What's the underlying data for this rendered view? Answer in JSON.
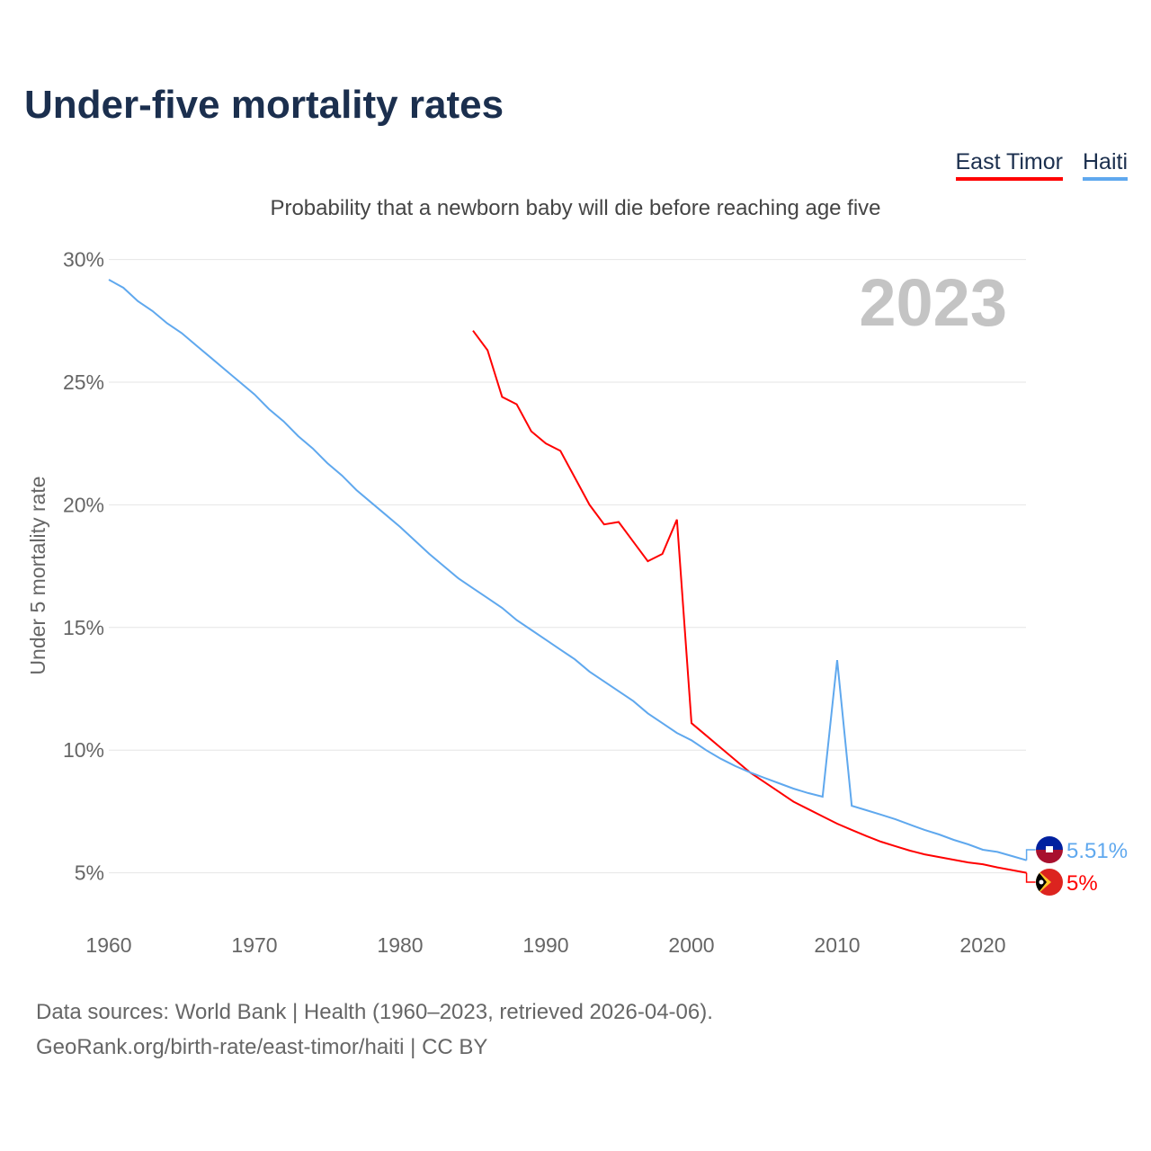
{
  "title": "Under-five mortality rates",
  "subtitle": "Probability that a newborn baby will die before reaching age five",
  "footer": {
    "line1": "Data sources: World Bank | Health (1960–2023, retrieved 2026-04-06).",
    "line2": "GeoRank.org/birth-rate/east-timor/haiti | CC BY"
  },
  "chart_data": {
    "type": "line",
    "title": "Under-five mortality rates",
    "ylabel": "Under 5 mortality rate",
    "xlabel": "",
    "year_label": "2023",
    "xlim": [
      1960,
      2023
    ],
    "ylim": [
      3,
      30
    ],
    "x_ticks": [
      1960,
      1970,
      1980,
      1990,
      2000,
      2010,
      2020
    ],
    "y_ticks": [
      5,
      10,
      15,
      20,
      25,
      30
    ],
    "y_tick_labels": [
      "5%",
      "10%",
      "15%",
      "20%",
      "25%",
      "30%"
    ],
    "grid": true,
    "legend_position": "top-right",
    "series": [
      {
        "name": "East Timor",
        "color": "#ff0000",
        "end_label": "5%",
        "flag": "east-timor-flag",
        "start_year": 1985,
        "values": [
          27.1,
          26.3,
          24.4,
          24.1,
          23.0,
          22.5,
          22.2,
          21.1,
          20.0,
          19.2,
          19.3,
          18.5,
          17.7,
          18.0,
          19.4,
          11.1,
          10.6,
          10.1,
          9.6,
          9.1,
          8.7,
          8.3,
          7.9,
          7.6,
          7.3,
          7.0,
          6.75,
          6.5,
          6.27,
          6.08,
          5.9,
          5.75,
          5.64,
          5.53,
          5.42,
          5.35,
          5.22,
          5.11,
          5.0
        ]
      },
      {
        "name": "Haiti",
        "color": "#5fa8ee",
        "end_label": "5.51%",
        "flag": "haiti-flag",
        "start_year": 1960,
        "values": [
          29.18,
          28.85,
          28.3,
          27.9,
          27.4,
          27.0,
          26.5,
          26.0,
          25.5,
          25.0,
          24.5,
          23.9,
          23.4,
          22.8,
          22.3,
          21.7,
          21.2,
          20.6,
          20.1,
          19.6,
          19.1,
          18.55,
          18.0,
          17.5,
          17.0,
          16.6,
          16.2,
          15.8,
          15.3,
          14.9,
          14.5,
          14.1,
          13.7,
          13.2,
          12.8,
          12.4,
          12.0,
          11.5,
          11.1,
          10.7,
          10.4,
          10.0,
          9.65,
          9.35,
          9.1,
          8.87,
          8.65,
          8.43,
          8.25,
          8.1,
          13.67,
          7.73,
          7.55,
          7.37,
          7.18,
          6.96,
          6.75,
          6.56,
          6.34,
          6.16,
          5.94,
          5.85,
          5.68,
          5.51
        ]
      }
    ]
  }
}
